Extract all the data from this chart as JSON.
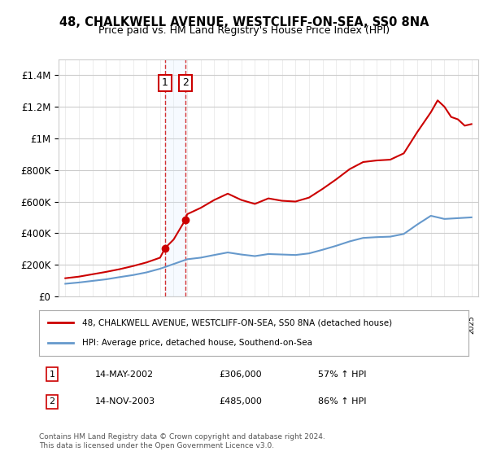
{
  "title": "48, CHALKWELL AVENUE, WESTCLIFF-ON-SEA, SS0 8NA",
  "subtitle": "Price paid vs. HM Land Registry's House Price Index (HPI)",
  "legend_line1": "48, CHALKWELL AVENUE, WESTCLIFF-ON-SEA, SS0 8NA (detached house)",
  "legend_line2": "HPI: Average price, detached house, Southend-on-Sea",
  "footer": "Contains HM Land Registry data © Crown copyright and database right 2024.\nThis data is licensed under the Open Government Licence v3.0.",
  "sale1_date": "14-MAY-2002",
  "sale1_price": 306000,
  "sale1_hpi": "57% ↑ HPI",
  "sale2_date": "14-NOV-2003",
  "sale2_price": 485000,
  "sale2_hpi": "86% ↑ HPI",
  "sale1_x": 2002.37,
  "sale2_x": 2003.87,
  "ylim": [
    0,
    1500000
  ],
  "xlim": [
    1994.5,
    2025.5
  ],
  "red_color": "#cc0000",
  "blue_color": "#6699cc",
  "background_color": "#ffffff",
  "grid_color": "#cccccc",
  "sale_box_color": "#cc0000",
  "shade_color": "#ddeeff"
}
